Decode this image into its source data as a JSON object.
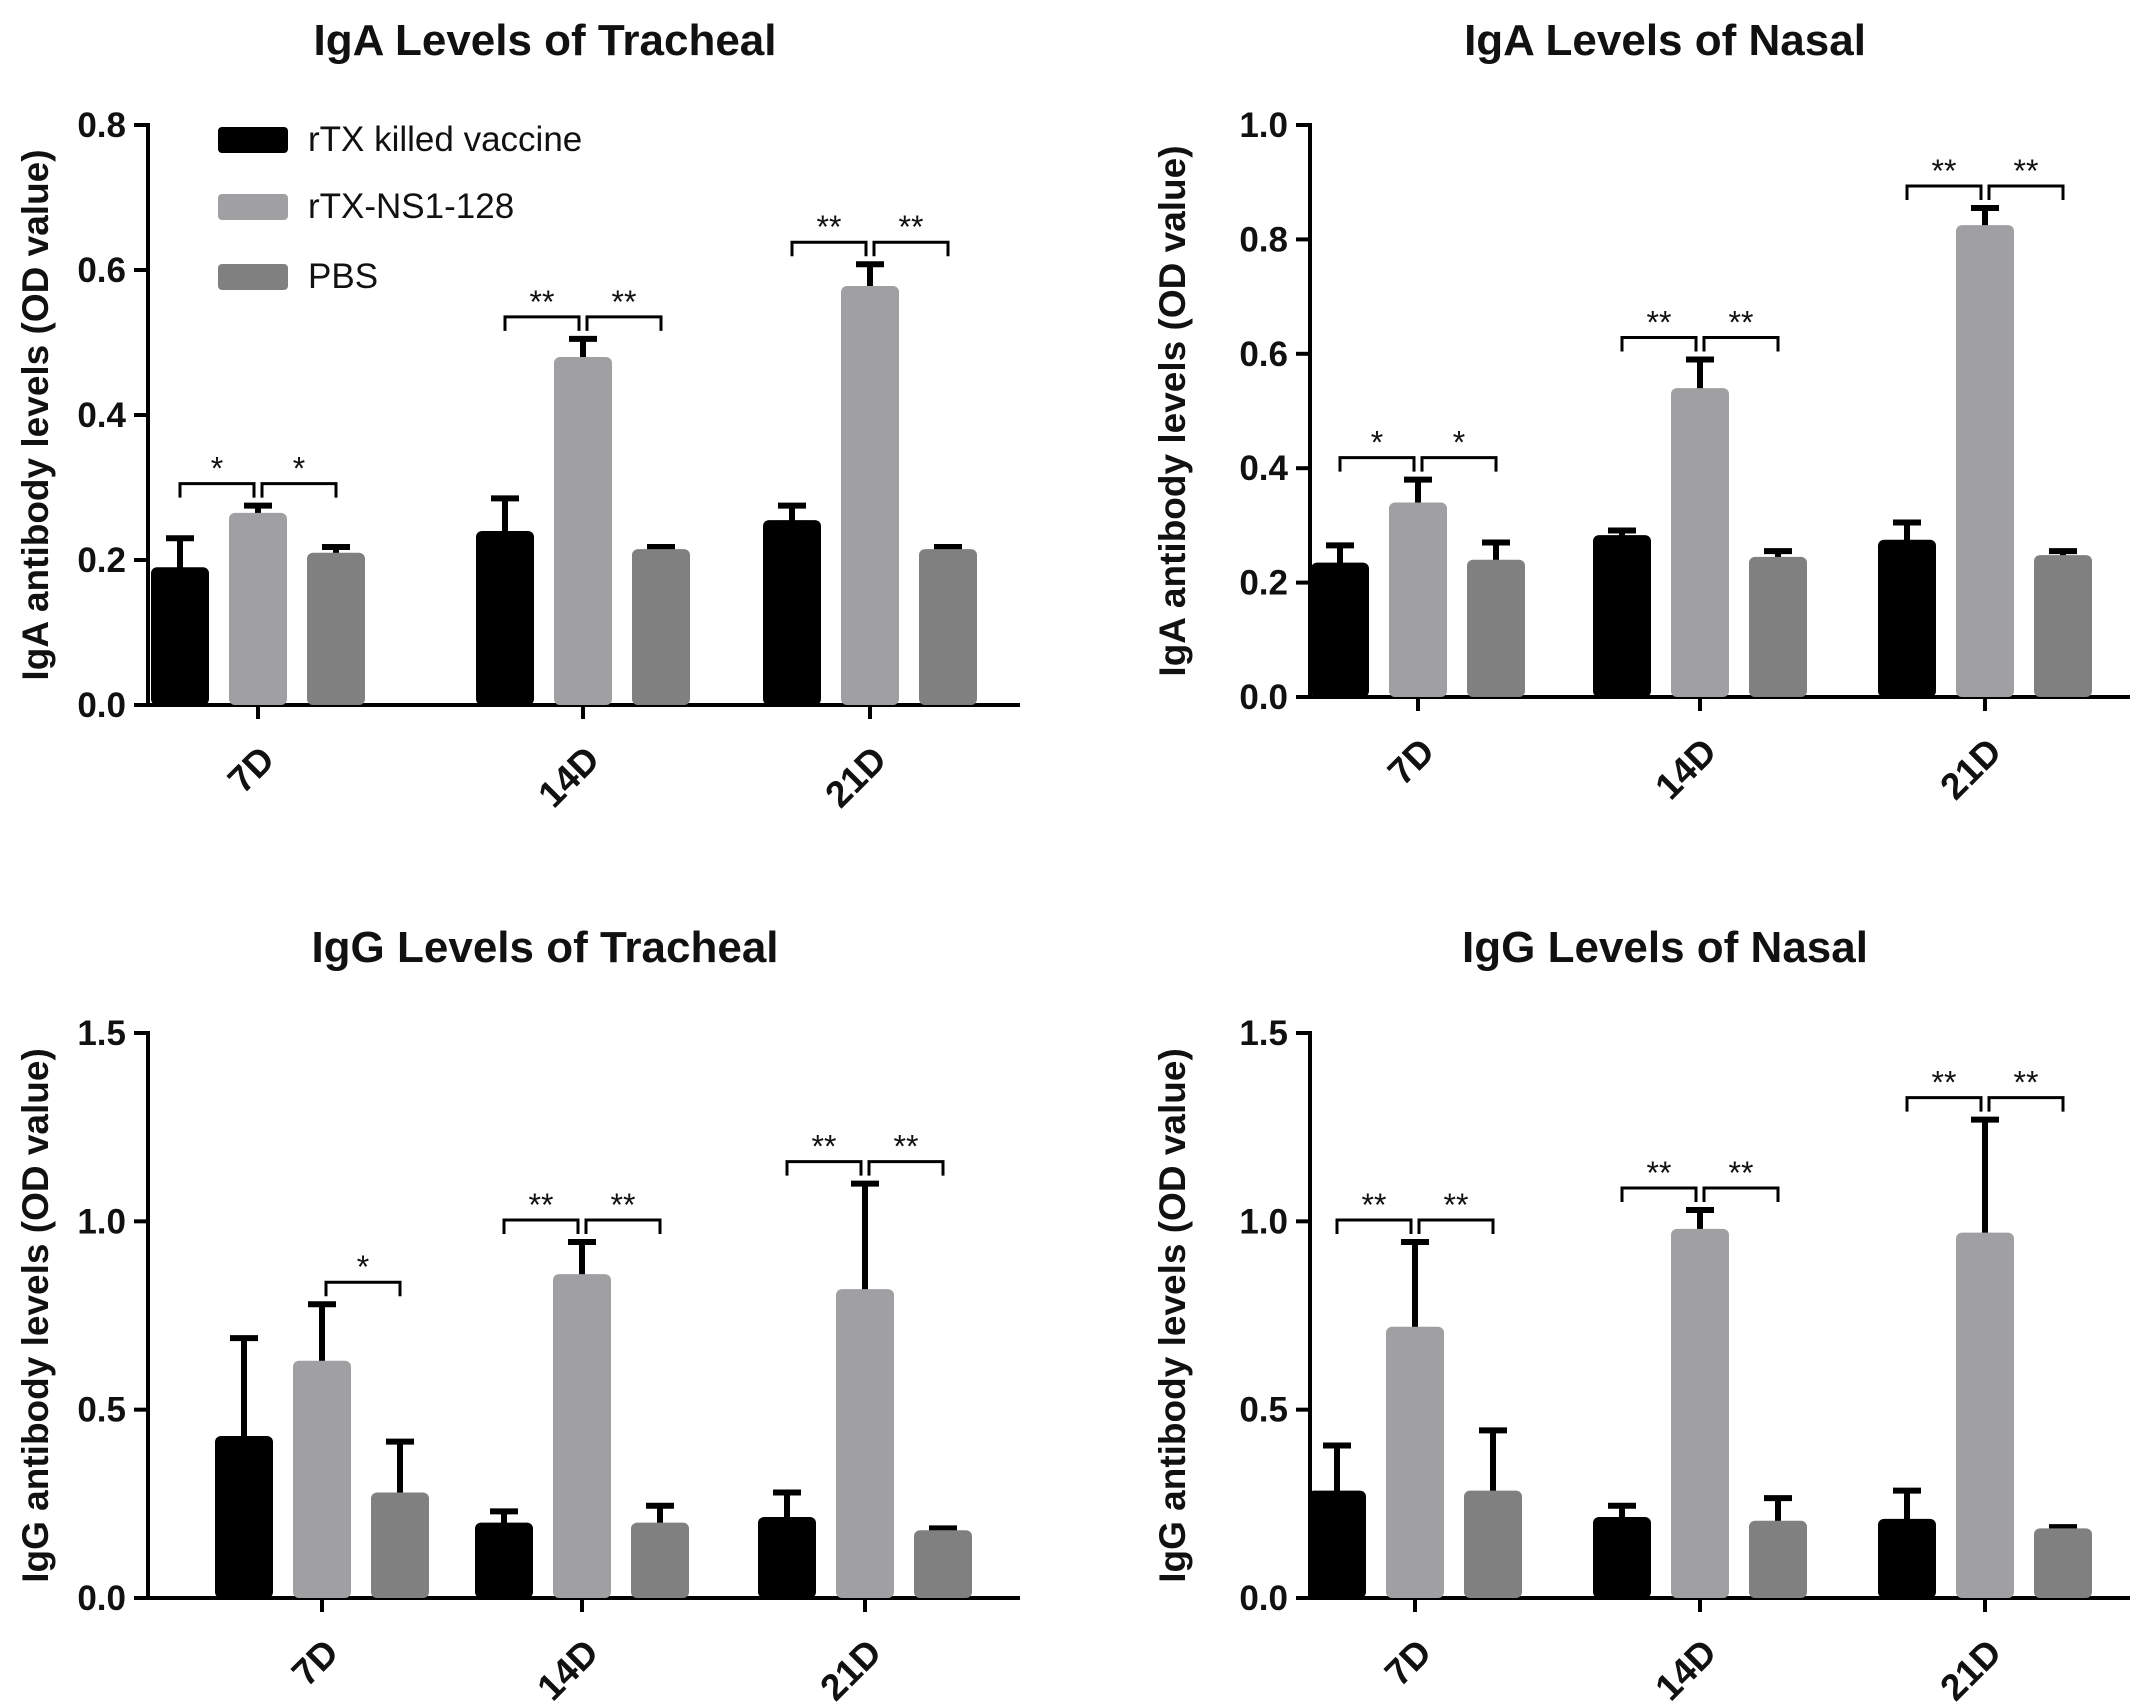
{
  "legend": {
    "entries": [
      {
        "label": "rTX killed vaccine",
        "color": "#000000"
      },
      {
        "label": "rTX-NS1-128",
        "color": "#a0a0a3"
      },
      {
        "label": "PBS",
        "color": "#808080"
      }
    ]
  },
  "chart_data": [
    {
      "type": "bar",
      "title": "IgA Levels of Tracheal",
      "xlabel": "",
      "ylabel": "IgA antibody levels (OD value)",
      "ylim": [
        0,
        0.8
      ],
      "yticks": [
        "0.0",
        "0.2",
        "0.4",
        "0.6",
        "0.8"
      ],
      "categories": [
        "7D",
        "14D",
        "21D"
      ],
      "series": [
        {
          "name": "rTX killed vaccine",
          "values": [
            0.19,
            0.24,
            0.255
          ],
          "errors": [
            0.04,
            0.045,
            0.02
          ]
        },
        {
          "name": "rTX-NS1-128",
          "values": [
            0.265,
            0.48,
            0.578
          ],
          "errors": [
            0.01,
            0.025,
            0.03
          ]
        },
        {
          "name": "PBS",
          "values": [
            0.21,
            0.215,
            0.215
          ],
          "errors": [
            0.008,
            0.003,
            0.003
          ]
        }
      ],
      "significance": [
        {
          "label": "*",
          "label2": "*"
        },
        {
          "label": "**",
          "label2": "**"
        },
        {
          "label": "**",
          "label2": "**"
        }
      ]
    },
    {
      "type": "bar",
      "title": "IgA Levels of Nasal",
      "xlabel": "",
      "ylabel": "IgA antibody levels (OD value)",
      "ylim": [
        0,
        1.0
      ],
      "yticks": [
        "0.0",
        "0.2",
        "0.4",
        "0.6",
        "0.8",
        "1.0"
      ],
      "categories": [
        "7D",
        "14D",
        "21D"
      ],
      "series": [
        {
          "name": "rTX killed vaccine",
          "values": [
            0.235,
            0.283,
            0.275
          ],
          "errors": [
            0.03,
            0.008,
            0.03
          ]
        },
        {
          "name": "rTX-NS1-128",
          "values": [
            0.34,
            0.54,
            0.825
          ],
          "errors": [
            0.04,
            0.05,
            0.03
          ]
        },
        {
          "name": "PBS",
          "values": [
            0.24,
            0.245,
            0.248
          ],
          "errors": [
            0.03,
            0.01,
            0.007
          ]
        }
      ],
      "significance": [
        {
          "label": "*",
          "label2": "*"
        },
        {
          "label": "**",
          "label2": "**"
        },
        {
          "label": "**",
          "label2": "**"
        }
      ]
    },
    {
      "type": "bar",
      "title": "IgG Levels of Tracheal",
      "xlabel": "",
      "ylabel": "IgG antibody levels (OD value)",
      "ylim": [
        0,
        1.5
      ],
      "yticks": [
        "0.0",
        "0.5",
        "1.0",
        "1.5"
      ],
      "categories": [
        "7D",
        "14D",
        "21D"
      ],
      "series": [
        {
          "name": "rTX killed vaccine",
          "values": [
            0.43,
            0.2,
            0.215
          ],
          "errors": [
            0.26,
            0.03,
            0.065
          ]
        },
        {
          "name": "rTX-NS1-128",
          "values": [
            0.63,
            0.86,
            0.82
          ],
          "errors": [
            0.15,
            0.085,
            0.28
          ]
        },
        {
          "name": "PBS",
          "values": [
            0.28,
            0.2,
            0.18
          ],
          "errors": [
            0.135,
            0.045,
            0.005
          ]
        }
      ],
      "significance": [
        {
          "label": "",
          "label2": "*"
        },
        {
          "label": "**",
          "label2": "**"
        },
        {
          "label": "**",
          "label2": "**"
        }
      ]
    },
    {
      "type": "bar",
      "title": "IgG Levels of Nasal",
      "xlabel": "",
      "ylabel": "IgG antibody levels (OD value)",
      "ylim": [
        0,
        1.5
      ],
      "yticks": [
        "0.0",
        "0.5",
        "1.0",
        "1.5"
      ],
      "categories": [
        "7D",
        "14D",
        "21D"
      ],
      "series": [
        {
          "name": "rTX killed vaccine",
          "values": [
            0.285,
            0.215,
            0.21
          ],
          "errors": [
            0.12,
            0.03,
            0.075
          ]
        },
        {
          "name": "rTX-NS1-128",
          "values": [
            0.72,
            0.98,
            0.97
          ],
          "errors": [
            0.225,
            0.05,
            0.3
          ]
        },
        {
          "name": "PBS",
          "values": [
            0.285,
            0.205,
            0.185
          ],
          "errors": [
            0.16,
            0.06,
            0.003
          ]
        }
      ],
      "significance": [
        {
          "label": "**",
          "label2": "**"
        },
        {
          "label": "**",
          "label2": "**"
        },
        {
          "label": "**",
          "label2": "**"
        }
      ]
    }
  ]
}
